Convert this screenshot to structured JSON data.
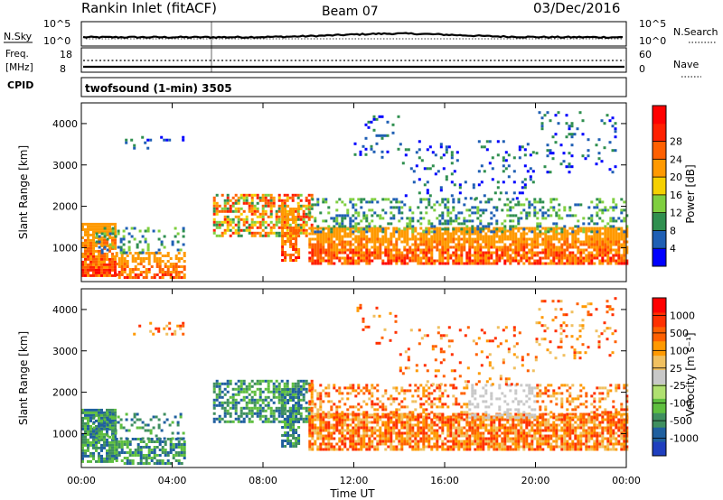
{
  "header": {
    "station": "Rankin Inlet (fitACF)",
    "beam": "Beam 07",
    "date": "03/Dec/2016"
  },
  "noise_panel": {
    "left_label": "N.Sky",
    "right_label": "N.Search",
    "ticks_left": [
      "10^5",
      "10^0"
    ],
    "ticks_right": [
      "10^5",
      "10^0"
    ]
  },
  "freq_panel": {
    "left_label_1": "Freq.",
    "left_label_2": "[MHz]",
    "right_label": "Nave",
    "ticks_left": [
      "18",
      "8"
    ],
    "ticks_right": [
      "60",
      "0"
    ]
  },
  "cpid": {
    "label": "CPID",
    "value": "twofsound (1-min) 3505"
  },
  "chart_data": [
    {
      "type": "heatmap",
      "title": "",
      "xlabel": "",
      "ylabel": "Slant Range [km]",
      "xlim": [
        "00:00",
        "24:00"
      ],
      "ylim": [
        180,
        4500
      ],
      "yticks": [
        "1000",
        "2000",
        "3000",
        "4000"
      ],
      "colorbar": {
        "label": "Power [dB]",
        "ticks": [
          "4",
          "8",
          "12",
          "16",
          "20",
          "24",
          "28"
        ],
        "colors": [
          "#0000ff",
          "#1f5fb4",
          "#2f8f4f",
          "#7fcf3f",
          "#f5d000",
          "#ff9900",
          "#ff6000",
          "#ff2000",
          "#ff0000"
        ]
      }
    },
    {
      "type": "heatmap",
      "title": "",
      "xlabel": "Time UT",
      "ylabel": "Slant Range [km]",
      "xlim": [
        "00:00",
        "24:00"
      ],
      "ylim": [
        180,
        4500
      ],
      "xticks": [
        "00:00",
        "04:00",
        "08:00",
        "12:00",
        "16:00",
        "20:00",
        "00:00"
      ],
      "yticks": [
        "1000",
        "2000",
        "3000",
        "4000"
      ],
      "colorbar": {
        "label": "Velocity [m s⁻¹]",
        "ticks": [
          "1000",
          "500",
          "100",
          "25",
          "-25",
          "-100",
          "-500",
          "-1000"
        ],
        "colors": [
          "#1f3fbf",
          "#1f5f9f",
          "#3f8f5f",
          "#5fbf3f",
          "#b0e070",
          "#c8c8c8",
          "#f0c060",
          "#ff9900",
          "#ff6000",
          "#ff3000",
          "#ff0000"
        ]
      }
    }
  ]
}
